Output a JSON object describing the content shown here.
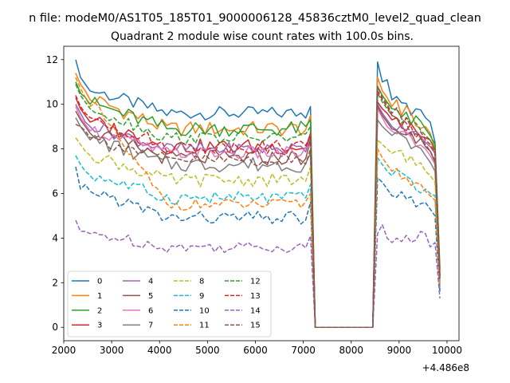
{
  "suptitle": "n file: modeM0/AS1T05_185T01_9000006128_45836cztM0_level2_quad_clean",
  "chart_data": {
    "type": "line",
    "title": "Quadrant 2 module wise count rates with 100.0s bins.",
    "xlabel": "",
    "ylabel": "",
    "x_offset_label": "+4.486e8",
    "xlim": [
      2000,
      10250
    ],
    "ylim": [
      -0.6,
      12.6
    ],
    "xticks": [
      2000,
      3000,
      4000,
      5000,
      6000,
      7000,
      8000,
      9000,
      10000
    ],
    "yticks": [
      0,
      2,
      4,
      6,
      8,
      10,
      12
    ],
    "grid": false,
    "legend": {
      "placement": "lower-left",
      "columns": 4
    },
    "x": [
      2250,
      2350,
      2450,
      2550,
      2650,
      2750,
      2850,
      2950,
      3050,
      3150,
      3250,
      3350,
      3450,
      3550,
      3650,
      3750,
      3850,
      3950,
      4050,
      4150,
      4250,
      4350,
      4450,
      4550,
      4650,
      4750,
      4850,
      4950,
      5050,
      5150,
      5250,
      5350,
      5450,
      5550,
      5650,
      5750,
      5850,
      5950,
      6050,
      6150,
      6250,
      6350,
      6450,
      6550,
      6650,
      6750,
      6850,
      6950,
      7050,
      7150,
      7250,
      7350,
      7450,
      7550,
      7650,
      7750,
      7850,
      7950,
      8050,
      8150,
      8250,
      8350,
      8450,
      8550,
      8650,
      8750,
      8850,
      8950,
      9050,
      9150,
      9250,
      9350,
      9450,
      9550,
      9650,
      9750,
      9850
    ],
    "series": [
      {
        "name": "0",
        "color": "#1f77b4",
        "dash": "solid",
        "start": [
          12.0,
          11.2,
          10.9,
          10.6
        ],
        "mid": 9.6,
        "amp": 0.3,
        "end": 9.9,
        "gapStart": [
          11.9,
          11.0,
          11.1,
          10.2
        ],
        "gapEnd": [
          9.4,
          9.2,
          8.3,
          2.7
        ]
      },
      {
        "name": "1",
        "color": "#ff7f0e",
        "dash": "solid",
        "start": [
          11.4,
          10.9,
          10.6,
          10.2
        ],
        "mid": 8.9,
        "amp": 0.35,
        "end": 9.5,
        "gapStart": [
          11.2,
          10.6,
          10.3,
          9.9
        ],
        "gapEnd": [
          9.0,
          8.7,
          8.0,
          2.5
        ]
      },
      {
        "name": "2",
        "color": "#2ca02c",
        "dash": "solid",
        "start": [
          11.0,
          10.5,
          10.3,
          10.0
        ],
        "mid": 8.9,
        "amp": 0.35,
        "end": 9.3,
        "gapStart": [
          10.8,
          10.4,
          10.1,
          9.8
        ],
        "gapEnd": [
          8.9,
          8.6,
          8.2,
          2.6
        ]
      },
      {
        "name": "3",
        "color": "#d62728",
        "dash": "solid",
        "start": [
          10.3,
          9.8,
          9.5,
          9.2
        ],
        "mid": 8.1,
        "amp": 0.35,
        "end": 8.7,
        "gapStart": [
          10.1,
          9.8,
          9.6,
          9.3
        ],
        "gapEnd": [
          8.5,
          8.4,
          7.9,
          2.3
        ]
      },
      {
        "name": "4",
        "color": "#9467bd",
        "dash": "solid",
        "start": [
          10.0,
          9.6,
          9.2,
          9.0
        ],
        "mid": 8.0,
        "amp": 0.3,
        "end": 8.5,
        "gapStart": [
          10.0,
          9.6,
          9.3,
          9.0
        ],
        "gapEnd": [
          8.3,
          8.1,
          7.8,
          2.2
        ]
      },
      {
        "name": "5",
        "color": "#8c564b",
        "dash": "solid",
        "start": [
          9.7,
          9.3,
          9.0,
          8.7
        ],
        "mid": 7.6,
        "amp": 0.35,
        "end": 8.4,
        "gapStart": [
          9.9,
          9.5,
          9.2,
          8.9
        ],
        "gapEnd": [
          8.1,
          7.9,
          7.4,
          2.2
        ]
      },
      {
        "name": "6",
        "color": "#e377c2",
        "dash": "solid",
        "start": [
          9.9,
          9.4,
          9.1,
          8.8
        ],
        "mid": 7.8,
        "amp": 0.3,
        "end": 8.1,
        "gapStart": [
          9.8,
          9.4,
          9.0,
          8.8
        ],
        "gapEnd": [
          8.0,
          7.7,
          7.3,
          2.1
        ]
      },
      {
        "name": "7",
        "color": "#7f7f7f",
        "dash": "solid",
        "start": [
          9.4,
          9.0,
          8.7,
          8.4
        ],
        "mid": 7.3,
        "amp": 0.35,
        "end": 7.8,
        "gapStart": [
          9.3,
          9.0,
          8.8,
          8.6
        ],
        "gapEnd": [
          7.7,
          7.4,
          7.0,
          2.0
        ]
      },
      {
        "name": "8",
        "color": "#bcbd22",
        "dash": "dashed",
        "start": [
          8.5,
          8.2,
          7.9,
          7.7
        ],
        "mid": 6.6,
        "amp": 0.3,
        "end": 7.2,
        "gapStart": [
          8.4,
          8.2,
          8.0,
          7.8
        ],
        "gapEnd": [
          7.0,
          6.8,
          6.5,
          1.9
        ]
      },
      {
        "name": "9",
        "color": "#17becf",
        "dash": "dashed",
        "start": [
          7.7,
          7.3,
          7.0,
          6.8
        ],
        "mid": 5.8,
        "amp": 0.3,
        "end": 6.4,
        "gapStart": [
          7.6,
          7.3,
          7.0,
          6.8
        ],
        "gapEnd": [
          6.2,
          6.0,
          5.9,
          1.7
        ]
      },
      {
        "name": "10",
        "color": "#1f77b4",
        "dash": "dashed",
        "start": [
          7.2,
          6.2,
          6.4,
          6.1
        ],
        "mid": 4.9,
        "amp": 0.3,
        "end": 5.6,
        "gapStart": [
          6.7,
          6.5,
          6.2,
          5.9
        ],
        "gapEnd": [
          5.6,
          5.3,
          5.0,
          1.6
        ]
      },
      {
        "name": "11",
        "color": "#ff7f0e",
        "dash": "dashed",
        "start": [
          11.2,
          10.7,
          10.3,
          9.9
        ],
        "mid": 5.5,
        "amp": 0.25,
        "end": 6.0,
        "gapStart": [
          8.0,
          7.6,
          7.3,
          7.0
        ],
        "gapEnd": [
          6.1,
          5.9,
          5.7,
          1.8
        ]
      },
      {
        "name": "12",
        "color": "#2ca02c",
        "dash": "dashed",
        "start": [
          10.9,
          10.4,
          10.1,
          9.8
        ],
        "mid": 8.5,
        "amp": 0.3,
        "end": 9.0,
        "gapStart": [
          10.5,
          10.1,
          9.8,
          9.5
        ],
        "gapEnd": [
          8.6,
          8.4,
          8.0,
          2.4
        ]
      },
      {
        "name": "13",
        "color": "#d62728",
        "dash": "dashed",
        "start": [
          10.4,
          9.9,
          9.6,
          9.4
        ],
        "mid": 8.1,
        "amp": 0.3,
        "end": 8.6,
        "gapStart": [
          10.6,
          10.2,
          9.9,
          9.5
        ],
        "gapEnd": [
          8.4,
          8.2,
          7.8,
          2.3
        ]
      },
      {
        "name": "14",
        "color": "#9467bd",
        "dash": "dashed",
        "start": [
          4.8,
          4.3,
          4.3,
          4.2
        ],
        "mid": 3.6,
        "amp": 0.25,
        "end": 4.1,
        "gapStart": [
          4.2,
          4.6,
          4.0,
          3.8
        ],
        "gapEnd": [
          4.2,
          3.6,
          3.8,
          1.3
        ]
      },
      {
        "name": "15",
        "color": "#8c564b",
        "dash": "dashed",
        "start": [
          9.1,
          9.0,
          8.8,
          8.5
        ],
        "mid": 7.5,
        "amp": 0.3,
        "end": 8.0,
        "gapStart": [
          10.8,
          10.3,
          10.0,
          9.6
        ],
        "gapEnd": [
          8.2,
          7.9,
          7.5,
          2.2
        ]
      }
    ]
  }
}
